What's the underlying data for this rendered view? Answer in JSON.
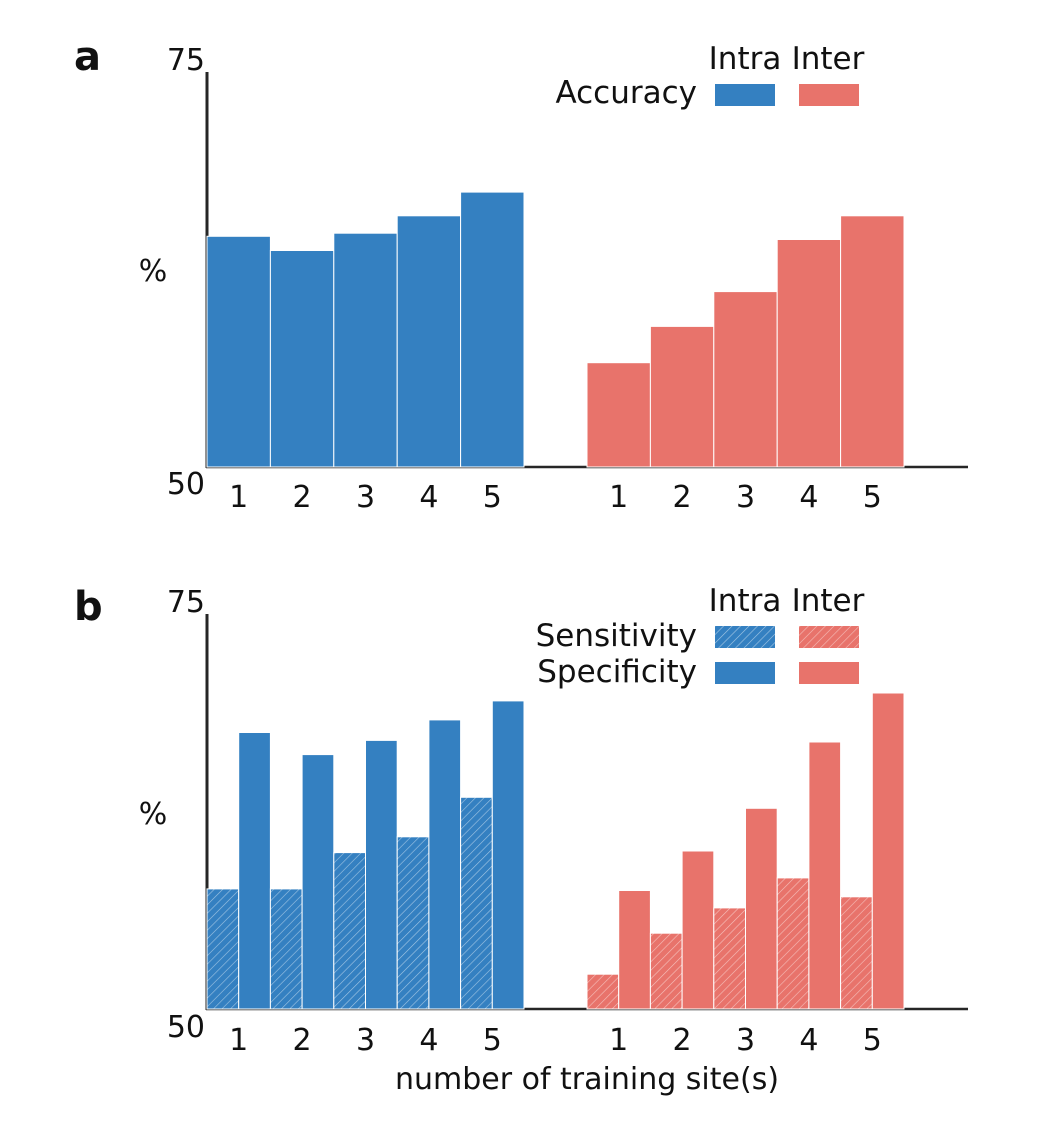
{
  "colors": {
    "intra": "#3480c1",
    "inter": "#e8736b",
    "axis": "#262626"
  },
  "xlabel": "number of training site(s)",
  "chart_data": [
    {
      "panel": "a",
      "type": "bar",
      "groups": [
        "Intra",
        "Inter"
      ],
      "categories": [
        "1",
        "2",
        "3",
        "4",
        "5"
      ],
      "ylabel": "%",
      "ylim": [
        50,
        75
      ],
      "yticks": [
        "50",
        "75"
      ],
      "legend": {
        "columns": [
          "Intra",
          "Inter"
        ],
        "rows": [
          {
            "label": "Accuracy",
            "pattern": "solid"
          }
        ],
        "position": "top-right"
      },
      "series": [
        {
          "name": "Accuracy",
          "group": "Intra",
          "values": [
            64.6,
            63.7,
            64.8,
            65.9,
            67.4
          ]
        },
        {
          "name": "Accuracy",
          "group": "Inter",
          "values": [
            56.6,
            58.9,
            61.1,
            64.4,
            65.9
          ]
        }
      ]
    },
    {
      "panel": "b",
      "type": "bar",
      "groups": [
        "Intra",
        "Inter"
      ],
      "categories": [
        "1",
        "2",
        "3",
        "4",
        "5"
      ],
      "ylabel": "%",
      "ylim": [
        50,
        75
      ],
      "yticks": [
        "50",
        "75"
      ],
      "legend": {
        "columns": [
          "Intra",
          "Inter"
        ],
        "rows": [
          {
            "label": "Sensitivity",
            "pattern": "hatched"
          },
          {
            "label": "Specificity",
            "pattern": "solid"
          }
        ],
        "position": "top-right"
      },
      "series": [
        {
          "name": "Sensitivity",
          "group": "Intra",
          "pattern": "hatched",
          "values": [
            57.6,
            57.6,
            59.9,
            60.9,
            63.4
          ]
        },
        {
          "name": "Specificity",
          "group": "Intra",
          "pattern": "solid",
          "values": [
            67.5,
            66.1,
            67.0,
            68.3,
            69.5
          ]
        },
        {
          "name": "Sensitivity",
          "group": "Inter",
          "pattern": "hatched",
          "values": [
            52.2,
            54.8,
            56.4,
            58.3,
            57.1
          ]
        },
        {
          "name": "Specificity",
          "group": "Inter",
          "pattern": "solid",
          "values": [
            57.5,
            60.0,
            62.7,
            66.9,
            70.0
          ]
        }
      ]
    }
  ]
}
